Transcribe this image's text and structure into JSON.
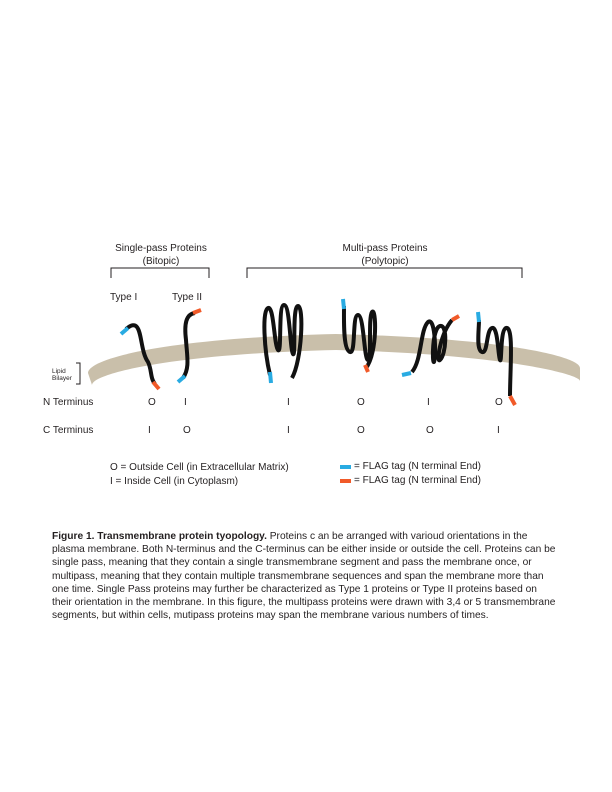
{
  "groups": {
    "single": {
      "title": "Single-pass Proteins",
      "subtitle": "(Bitopic)"
    },
    "multi": {
      "title": "Multi-pass Proteins",
      "subtitle": "(Polytopic)"
    }
  },
  "types": {
    "type1": "Type I",
    "type2": "Type II"
  },
  "membrane_label": [
    "Lipid",
    "Bilayer"
  ],
  "row_labels": {
    "n": "N Terminus",
    "c": "C Terminus"
  },
  "proteins": [
    {
      "n": "O",
      "c": "I"
    },
    {
      "n": "I",
      "c": "O"
    },
    {
      "n": "I",
      "c": "I"
    },
    {
      "n": "O",
      "c": "O"
    },
    {
      "n": "I",
      "c": "O"
    },
    {
      "n": "O",
      "c": "I"
    }
  ],
  "key": {
    "outside": "O = Outside Cell (in Extracellular Matrix)",
    "inside": "I = Inside Cell (in Cytoplasm)",
    "flag_blue": "= FLAG tag (N terminal End)",
    "flag_red": "= FLAG tag (N terminal End)"
  },
  "colors": {
    "membrane": "#c9bfaa",
    "protein": "#111111",
    "flag_blue": "#29abe2",
    "flag_red": "#f15a29"
  },
  "caption": {
    "title": "Figure 1. Transmembrane protein tyopology.",
    "body": " Proteins c an be arranged with varioud orientations in the plasma membrane. Both N-terminus and the C-terminus can be either inside or outside the cell. Proteins can be single pass, meaning that they contain a single transmembrane segment and pass the membrane once, or multipass, meaning that they contain multiple transmembrane sequences and span the membrane more than one time. Single Pass proteins may further be characterized as Type 1 proteins or Type II proteins based on their orientation in the membrane. In this figure, the multipass proteins were drawn with 3,4 or 5 transmembrane segments, but within cells, mutipass proteins may span the membrane various numbers of times."
  }
}
